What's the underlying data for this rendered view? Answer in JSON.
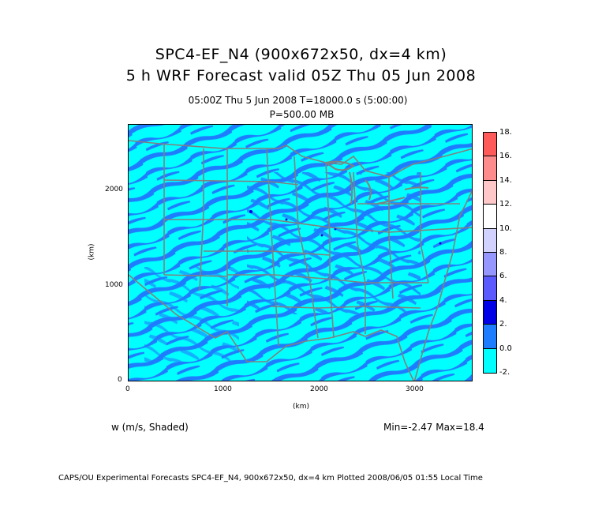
{
  "header": {
    "title1": "SPC4-EF_N4 (900x672x50, dx=4 km)",
    "title2": "5 h WRF Forecast valid 05Z Thu 05 Jun 2008",
    "subtitle1": "05:00Z Thu  5 Jun 2008     T=18000.0 s (5:00:00)",
    "subtitle2": "P=500.00 MB"
  },
  "axes": {
    "x_ticks": [
      "0",
      "1000",
      "2000",
      "3000"
    ],
    "y_ticks": [
      "0",
      "1000",
      "2000"
    ],
    "x_label": "(km)",
    "y_label": "(km)"
  },
  "field": {
    "label": "w (m/s, Shaded)",
    "stats": "Min=-2.47 Max=18.4"
  },
  "colorbar": {
    "labels": [
      "18.",
      "16.",
      "14.",
      "12.",
      "10.",
      "8.",
      "6.",
      "4.",
      "2.",
      "0.0",
      "-2."
    ],
    "colors": [
      "#ff5a5a",
      "#ff8c8c",
      "#ffc8c8",
      "#ffffff",
      "#d2d2ff",
      "#9696ff",
      "#5a5aff",
      "#0000e6",
      "#1e7dff",
      "#00ffff"
    ]
  },
  "footer": {
    "text": "CAPS/OU Experimental Forecasts  SPC4-EF_N4, 900x672x50, dx=4 km  Plotted 2008/06/05 01:55 Local Time"
  }
}
